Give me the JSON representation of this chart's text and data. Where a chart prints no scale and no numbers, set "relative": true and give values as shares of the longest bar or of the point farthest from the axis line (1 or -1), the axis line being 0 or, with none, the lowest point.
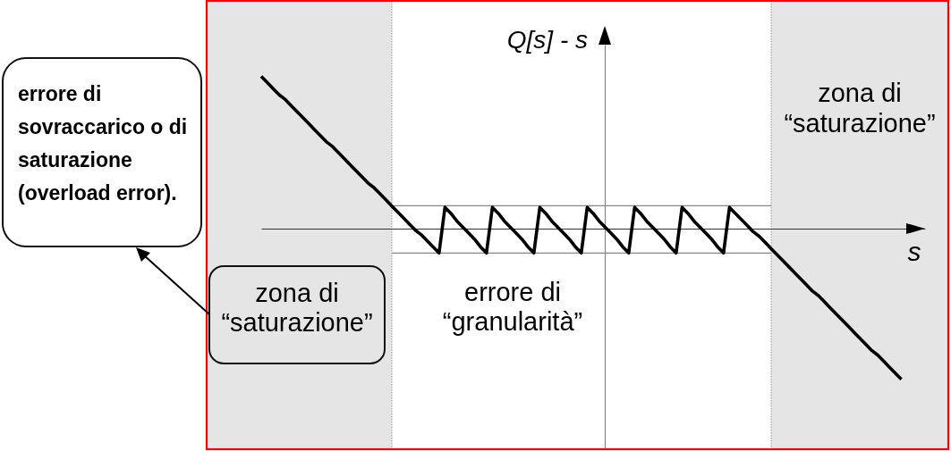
{
  "chart_data": {
    "type": "line",
    "ylabel": "Q[s] - s",
    "xlabel": "s",
    "annotations": [
      "errore di sovraccarico o di saturazione (overload error).",
      "zona di “saturazione”",
      "zona di “saturazione”",
      "errore di “granularità”"
    ],
    "categories": [
      null,
      null,
      null,
      null,
      null,
      null,
      null,
      null,
      null,
      null,
      null,
      null,
      null,
      null,
      null,
      null,
      null,
      null,
      null,
      null,
      null,
      null,
      null,
      null,
      null,
      null,
      null,
      null,
      null,
      null,
      null,
      null,
      null,
      null,
      null,
      null,
      null,
      null,
      null,
      null,
      null,
      null,
      null,
      null,
      null,
      null,
      null,
      null,
      null,
      null,
      null,
      null,
      null,
      null,
      null,
      null,
      null,
      null,
      null,
      null,
      null,
      null,
      null,
      null,
      null,
      null,
      null,
      null,
      null,
      null,
      null,
      null,
      null,
      null,
      null,
      null,
      null,
      null,
      null,
      null,
      null,
      null,
      null,
      null,
      null,
      null,
      null,
      null,
      null,
      null,
      null,
      null,
      null,
      null,
      null,
      null,
      null,
      null,
      null,
      null,
      null,
      null,
      null,
      null,
      null,
      null,
      null,
      null,
      null,
      null,
      null,
      null,
      null
    ],
    "values": [
      1,
      0.96,
      0.92,
      0.88,
      0.85,
      0.81,
      0.77,
      0.73,
      0.69,
      0.65,
      0.61,
      0.57,
      0.54,
      0.5,
      0.46,
      0.42,
      0.38,
      0.34,
      0.3,
      0.27,
      0.23,
      0.19,
      0.15,
      0.11,
      0.07,
      0.03,
      -0.01,
      -0.04,
      -0.08,
      -0.12,
      -0.16,
      0.14,
      0.1,
      0.05,
      0.01,
      -0.03,
      -0.07,
      -0.12,
      -0.16,
      0.14,
      0.1,
      0.05,
      0.01,
      -0.03,
      -0.07,
      -0.12,
      -0.16,
      0.14,
      0.1,
      0.05,
      0.01,
      -0.03,
      -0.07,
      -0.12,
      -0.16,
      0.14,
      0.1,
      0.05,
      0.01,
      -0.03,
      -0.07,
      -0.12,
      -0.16,
      0.14,
      0.1,
      0.05,
      0.01,
      -0.03,
      -0.07,
      -0.12,
      -0.16,
      0.14,
      0.1,
      0.05,
      0.01,
      -0.03,
      -0.07,
      -0.12,
      -0.16,
      0.14,
      0.1,
      0.06,
      0.02,
      -0.02,
      -0.05,
      -0.09,
      -0.13,
      -0.17,
      -0.21,
      -0.25,
      -0.29,
      -0.33,
      -0.37,
      -0.41,
      -0.44,
      -0.48,
      -0.52,
      -0.56,
      -0.6,
      -0.64,
      -0.68,
      -0.72,
      -0.76,
      -0.8,
      -0.83,
      -0.87,
      -0.91,
      -0.95,
      -0.99,
      null,
      null,
      null,
      null
    ],
    "color": "#000000",
    "relative": true,
    "ref_lines": [
      {
        "axis": "y",
        "value": 0.15,
        "color": "#888888"
      },
      {
        "axis": "y",
        "value": -0.16,
        "color": "#888888"
      }
    ]
  }
}
